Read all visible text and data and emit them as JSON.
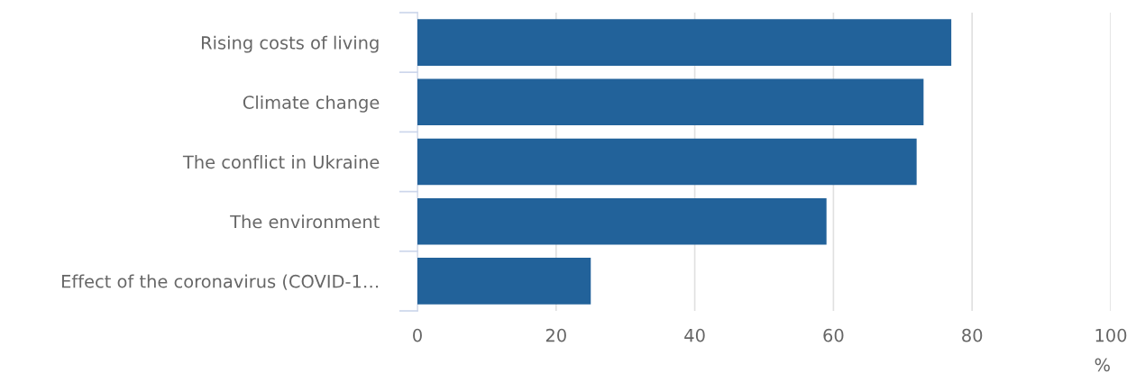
{
  "chart_data": {
    "type": "bar",
    "orientation": "horizontal",
    "categories": [
      "Rising costs of living",
      "Climate change",
      "The conflict in Ukraine",
      "The environment",
      "Effect of the coronavirus (COVID-1…"
    ],
    "values": [
      77,
      73,
      72,
      59,
      25
    ],
    "color": "#22629a",
    "xlabel": "%",
    "xlim": [
      0,
      100
    ],
    "xticks": [
      0,
      20,
      40,
      60,
      80,
      100
    ],
    "grid": "x",
    "legend": false
  }
}
